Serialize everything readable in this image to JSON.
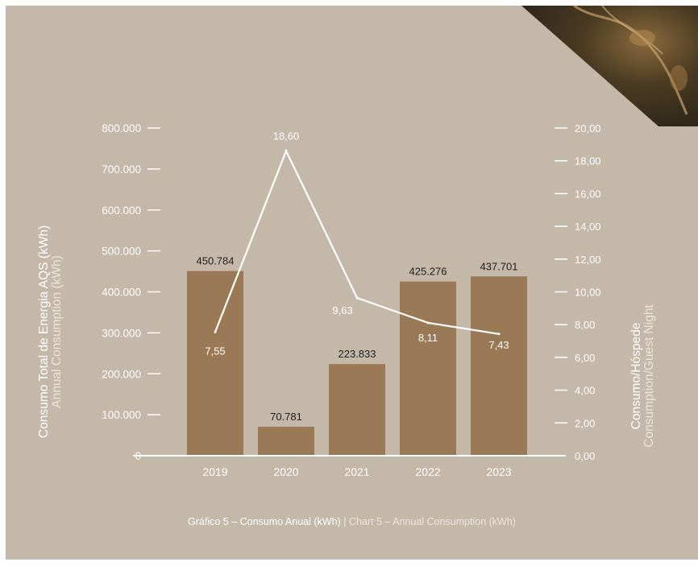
{
  "colors": {
    "background": "#c4b8a9",
    "bar": "#9a7a56",
    "line": "#ffffff",
    "label_dark": "#1e1e1e",
    "label_light": "#ffffff"
  },
  "caption": {
    "pt": "Gráfico 5 – Consumo Anual (kWh)",
    "separator": "|",
    "en": "Chart 5 – Annual Consumption (kWh)"
  },
  "corner_photo": "plant-photo-corner",
  "chart_data": {
    "type": "bar",
    "categories": [
      "2019",
      "2020",
      "2021",
      "2022",
      "2023"
    ],
    "series": [
      {
        "name": "Consumo Total de Energia AQS (kWh)",
        "axis": "left",
        "type": "bar",
        "values": [
          450784,
          70781,
          223833,
          425276,
          437701
        ],
        "value_labels": [
          "450.784",
          "70.781",
          "223.833",
          "425.276",
          "437.701"
        ]
      },
      {
        "name": "Consumo/Hóspede",
        "axis": "right",
        "type": "line",
        "values": [
          7.55,
          18.6,
          9.63,
          8.11,
          7.43
        ],
        "value_labels": [
          "7,55",
          "18,60",
          "9,63",
          "8,11",
          "7,43"
        ]
      }
    ],
    "y_left": {
      "label": "Consumo Total de Energia AQS (kWh)",
      "sublabel": "Annual Consumption (kWh)",
      "ylim": [
        0,
        800000
      ],
      "ticks": [
        "0",
        "100.000",
        "200.000",
        "300.000",
        "400.000",
        "500.000",
        "600.000",
        "700.000",
        "800.000"
      ]
    },
    "y_right": {
      "label": "Consumo/Hóspede",
      "sublabel": "Consumption/Guest Night",
      "ylim": [
        0,
        20
      ],
      "ticks": [
        "0,00",
        "2,00",
        "4,00",
        "6,00",
        "8,00",
        "10,00",
        "12,00",
        "14,00",
        "16,00",
        "18,00",
        "20,00"
      ]
    },
    "grid": false,
    "legend": "none"
  }
}
